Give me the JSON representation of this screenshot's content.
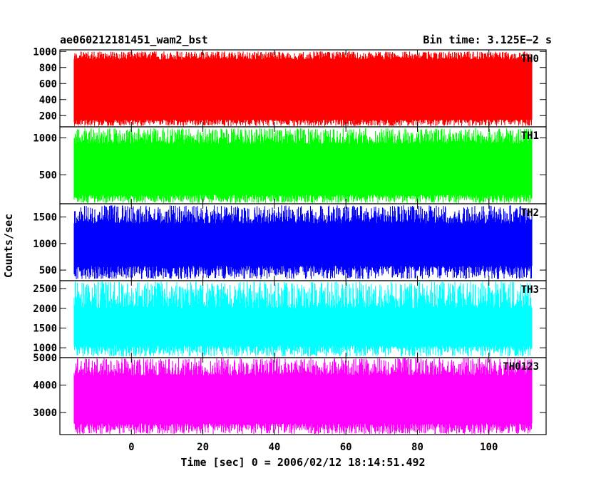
{
  "title_left": "ae060212181451_wam2_bst",
  "title_right": "Bin time: 3.125E−2 s",
  "ylabel": "Counts/sec",
  "xlabel": "Time [sec] 0 = 2006/02/12 18:14:51.492",
  "chart_data": {
    "type": "line",
    "title": "ae060212181451_wam2_bst",
    "xlabel": "Time [sec] 0 = 2006/02/12 18:14:51.492",
    "ylabel": "Counts/sec",
    "bin_time_s": 0.03125,
    "xlim": [
      -20,
      116
    ],
    "xticks": [
      0,
      20,
      40,
      60,
      80,
      100
    ],
    "x_data_range": [
      -16,
      112
    ],
    "panels": [
      {
        "name": "TH0",
        "color": "#ff0000",
        "ylim": [
          60,
          1020
        ],
        "yticks": [
          200,
          400,
          600,
          800,
          1000
        ],
        "band": [
          150,
          900
        ],
        "typical_min": 70,
        "typical_max": 1000
      },
      {
        "name": "TH1",
        "color": "#00ff00",
        "ylim": [
          110,
          1150
        ],
        "yticks": [
          500,
          1000
        ],
        "band": [
          230,
          920
        ],
        "typical_min": 120,
        "typical_max": 1130
      },
      {
        "name": "TH2",
        "color": "#0000ff",
        "ylim": [
          300,
          1750
        ],
        "yticks": [
          500,
          1000,
          1500
        ],
        "band": [
          580,
          1380
        ],
        "typical_min": 330,
        "typical_max": 1720
      },
      {
        "name": "TH3",
        "color": "#00ffff",
        "ylim": [
          750,
          2700
        ],
        "yticks": [
          1000,
          1500,
          2000,
          2500
        ],
        "band": [
          1050,
          2000
        ],
        "typical_min": 780,
        "typical_max": 2680
      },
      {
        "name": "TH0123",
        "color": "#ff00ff",
        "ylim": [
          2200,
          5000
        ],
        "yticks": [
          3000,
          4000,
          5000
        ],
        "band": [
          2600,
          4350
        ],
        "typical_min": 2220,
        "typical_max": 4990
      }
    ]
  }
}
